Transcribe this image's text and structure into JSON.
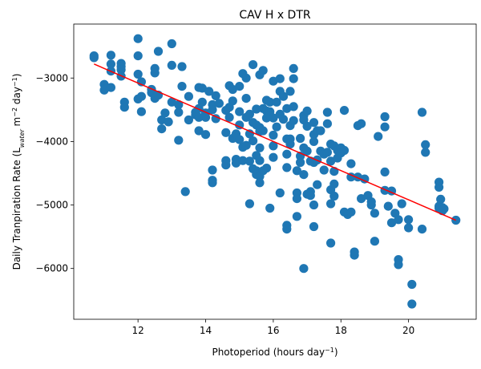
{
  "chart_data": {
    "type": "scatter",
    "title": "CAV H x DTR",
    "xlabel": {
      "main": "Photoperiod (hours day",
      "sup": "−1",
      "tail": ")"
    },
    "ylabel": {
      "main": "Daily Tranpiration Rate (L",
      "sub": "water",
      "mid": " m",
      "sup1": "−2",
      "mid2": " day",
      "sup2": "−1",
      "tail": ")"
    },
    "xlim": [
      10.1,
      22.0
    ],
    "ylim": [
      -6800,
      -2150
    ],
    "xticks": [
      12,
      14,
      16,
      18,
      20
    ],
    "xtick_labels": [
      "12",
      "14",
      "16",
      "18",
      "20"
    ],
    "yticks": [
      -6000,
      -5000,
      -4000,
      -3000
    ],
    "ytick_labels": [
      "−6000",
      "−5000",
      "−4000",
      "−3000"
    ],
    "grid": false,
    "point_color": "#1f77b4",
    "trend_color": "#ff0000",
    "trendline": {
      "x": [
        10.7,
        21.4
      ],
      "y": [
        -2780,
        -5240
      ]
    },
    "points": [
      [
        10.7,
        -2650
      ],
      [
        10.7,
        -2680
      ],
      [
        11.0,
        -3100
      ],
      [
        11.0,
        -3190
      ],
      [
        11.2,
        -2780
      ],
      [
        11.2,
        -2890
      ],
      [
        11.2,
        -3150
      ],
      [
        11.2,
        -2640
      ],
      [
        11.5,
        -2770
      ],
      [
        11.5,
        -2820
      ],
      [
        11.5,
        -2870
      ],
      [
        11.5,
        -2970
      ],
      [
        11.6,
        -3380
      ],
      [
        11.6,
        -3460
      ],
      [
        12.0,
        -2380
      ],
      [
        12.0,
        -2650
      ],
      [
        12.0,
        -2940
      ],
      [
        12.0,
        -3330
      ],
      [
        12.1,
        -3060
      ],
      [
        12.1,
        -3530
      ],
      [
        12.1,
        -3290
      ],
      [
        12.4,
        -3180
      ],
      [
        12.4,
        -3230
      ],
      [
        12.5,
        -2850
      ],
      [
        12.5,
        -2920
      ],
      [
        12.5,
        -3320
      ],
      [
        12.6,
        -2580
      ],
      [
        12.6,
        -3270
      ],
      [
        12.7,
        -3660
      ],
      [
        12.7,
        -3800
      ],
      [
        12.8,
        -3550
      ],
      [
        12.9,
        -3690
      ],
      [
        13.0,
        -2460
      ],
      [
        13.0,
        -2800
      ],
      [
        13.0,
        -3380
      ],
      [
        13.2,
        -3420
      ],
      [
        13.2,
        -3540
      ],
      [
        13.2,
        -3980
      ],
      [
        13.3,
        -2820
      ],
      [
        13.3,
        -3130
      ],
      [
        13.4,
        -4790
      ],
      [
        13.5,
        -3660
      ],
      [
        13.5,
        -3290
      ],
      [
        13.7,
        -3540
      ],
      [
        13.7,
        -3580
      ],
      [
        13.8,
        -3150
      ],
      [
        13.8,
        -3480
      ],
      [
        13.8,
        -3620
      ],
      [
        13.8,
        -3830
      ],
      [
        13.9,
        -3160
      ],
      [
        13.9,
        -3380
      ],
      [
        14.0,
        -3550
      ],
      [
        14.0,
        -3620
      ],
      [
        14.0,
        -3890
      ],
      [
        14.1,
        -3210
      ],
      [
        14.2,
        -3420
      ],
      [
        14.2,
        -3500
      ],
      [
        14.2,
        -4450
      ],
      [
        14.2,
        -4610
      ],
      [
        14.2,
        -4650
      ],
      [
        14.3,
        -3280
      ],
      [
        14.3,
        -3640
      ],
      [
        14.4,
        -3400
      ],
      [
        14.6,
        -3510
      ],
      [
        14.6,
        -3860
      ],
      [
        14.6,
        -4300
      ],
      [
        14.6,
        -4370
      ],
      [
        14.7,
        -3120
      ],
      [
        14.7,
        -3460
      ],
      [
        14.7,
        -3620
      ],
      [
        14.8,
        -3360
      ],
      [
        14.8,
        -3950
      ],
      [
        14.8,
        -3180
      ],
      [
        14.9,
        -3880
      ],
      [
        14.9,
        -4280
      ],
      [
        14.9,
        -4340
      ],
      [
        15.0,
        -3130
      ],
      [
        15.0,
        -3740
      ],
      [
        15.0,
        -3970
      ],
      [
        15.0,
        -3530
      ],
      [
        15.1,
        -2930
      ],
      [
        15.1,
        -4090
      ],
      [
        15.1,
        -4300
      ],
      [
        15.2,
        -3320
      ],
      [
        15.2,
        -3620
      ],
      [
        15.2,
        -4060
      ],
      [
        15.2,
        -3000
      ],
      [
        15.3,
        -3570
      ],
      [
        15.3,
        -3880
      ],
      [
        15.3,
        -4310
      ],
      [
        15.3,
        -4980
      ],
      [
        15.4,
        -2790
      ],
      [
        15.4,
        -3700
      ],
      [
        15.4,
        -3990
      ],
      [
        15.4,
        -4430
      ],
      [
        15.5,
        -3490
      ],
      [
        15.5,
        -3740
      ],
      [
        15.5,
        -4220
      ],
      [
        15.5,
        -4460
      ],
      [
        15.5,
        -4520
      ],
      [
        15.6,
        -2950
      ],
      [
        15.6,
        -3780
      ],
      [
        15.6,
        -3840
      ],
      [
        15.6,
        -4100
      ],
      [
        15.6,
        -4300
      ],
      [
        15.6,
        -4550
      ],
      [
        15.6,
        -4650
      ],
      [
        15.7,
        -2880
      ],
      [
        15.7,
        -3480
      ],
      [
        15.7,
        -3830
      ],
      [
        15.7,
        -4460
      ],
      [
        15.8,
        -3350
      ],
      [
        15.8,
        -3520
      ],
      [
        15.8,
        -3630
      ],
      [
        15.8,
        -4420
      ],
      [
        15.9,
        -3380
      ],
      [
        15.9,
        -3530
      ],
      [
        15.9,
        -3590
      ],
      [
        15.9,
        -5050
      ],
      [
        16.0,
        -3050
      ],
      [
        16.0,
        -3630
      ],
      [
        16.0,
        -3900
      ],
      [
        16.0,
        -4070
      ],
      [
        16.0,
        -4250
      ],
      [
        16.1,
        -3380
      ],
      [
        16.1,
        -3770
      ],
      [
        16.2,
        -3010
      ],
      [
        16.2,
        -3210
      ],
      [
        16.2,
        -3570
      ],
      [
        16.2,
        -4810
      ],
      [
        16.3,
        -3290
      ],
      [
        16.3,
        -3650
      ],
      [
        16.4,
        -3480
      ],
      [
        16.4,
        -3960
      ],
      [
        16.4,
        -4200
      ],
      [
        16.4,
        -4410
      ],
      [
        16.4,
        -5320
      ],
      [
        16.4,
        -5380
      ],
      [
        16.5,
        -3210
      ],
      [
        16.5,
        -3750
      ],
      [
        16.5,
        -3960
      ],
      [
        16.5,
        -4040
      ],
      [
        16.6,
        -2850
      ],
      [
        16.6,
        -3010
      ],
      [
        16.6,
        -3450
      ],
      [
        16.6,
        -3670
      ],
      [
        16.7,
        -4460
      ],
      [
        16.7,
        -4810
      ],
      [
        16.7,
        -4900
      ],
      [
        16.7,
        -5180
      ],
      [
        16.8,
        -3950
      ],
      [
        16.8,
        -4230
      ],
      [
        16.8,
        -4330
      ],
      [
        16.9,
        -3590
      ],
      [
        16.9,
        -3660
      ],
      [
        16.9,
        -4100
      ],
      [
        16.9,
        -4520
      ],
      [
        16.9,
        -6000
      ],
      [
        17.0,
        -3520
      ],
      [
        17.0,
        -3760
      ],
      [
        17.0,
        -4150
      ],
      [
        17.0,
        -4830
      ],
      [
        17.1,
        -4310
      ],
      [
        17.1,
        -4790
      ],
      [
        17.1,
        -4850
      ],
      [
        17.2,
        -3700
      ],
      [
        17.2,
        -3890
      ],
      [
        17.2,
        -4000
      ],
      [
        17.2,
        -4330
      ],
      [
        17.2,
        -5000
      ],
      [
        17.2,
        -5340
      ],
      [
        17.3,
        -3830
      ],
      [
        17.3,
        -4290
      ],
      [
        17.3,
        -4680
      ],
      [
        17.4,
        -3830
      ],
      [
        17.4,
        -4150
      ],
      [
        17.5,
        -4200
      ],
      [
        17.5,
        -4450
      ],
      [
        17.6,
        -3540
      ],
      [
        17.6,
        -3720
      ],
      [
        17.6,
        -4170
      ],
      [
        17.7,
        -4040
      ],
      [
        17.7,
        -4310
      ],
      [
        17.7,
        -4760
      ],
      [
        17.7,
        -4980
      ],
      [
        17.7,
        -5600
      ],
      [
        17.8,
        -4070
      ],
      [
        17.8,
        -4470
      ],
      [
        17.8,
        -4670
      ],
      [
        17.8,
        -4860
      ],
      [
        17.9,
        -4140
      ],
      [
        17.9,
        -4260
      ],
      [
        18.0,
        -4100
      ],
      [
        18.0,
        -4180
      ],
      [
        18.1,
        -3510
      ],
      [
        18.1,
        -4140
      ],
      [
        18.1,
        -5110
      ],
      [
        18.2,
        -5150
      ],
      [
        18.3,
        -5110
      ],
      [
        18.3,
        -4350
      ],
      [
        18.3,
        -4560
      ],
      [
        18.4,
        -5790
      ],
      [
        18.4,
        -5740
      ],
      [
        18.5,
        -3750
      ],
      [
        18.5,
        -4560
      ],
      [
        18.6,
        -3720
      ],
      [
        18.6,
        -4900
      ],
      [
        18.7,
        -4590
      ],
      [
        18.8,
        -4850
      ],
      [
        18.9,
        -4950
      ],
      [
        18.9,
        -5000
      ],
      [
        19.0,
        -5130
      ],
      [
        19.0,
        -5570
      ],
      [
        19.1,
        -3920
      ],
      [
        19.3,
        -3610
      ],
      [
        19.3,
        -3770
      ],
      [
        19.3,
        -4480
      ],
      [
        19.3,
        -4770
      ],
      [
        19.4,
        -5020
      ],
      [
        19.5,
        -4780
      ],
      [
        19.5,
        -5280
      ],
      [
        19.6,
        -5130
      ],
      [
        19.7,
        -5230
      ],
      [
        19.7,
        -5860
      ],
      [
        19.7,
        -5940
      ],
      [
        19.8,
        -4980
      ],
      [
        20.0,
        -5360
      ],
      [
        20.0,
        -5230
      ],
      [
        20.1,
        -6250
      ],
      [
        20.1,
        -6560
      ],
      [
        20.4,
        -3540
      ],
      [
        20.4,
        -5380
      ],
      [
        20.5,
        -4050
      ],
      [
        20.5,
        -4170
      ],
      [
        20.9,
        -4640
      ],
      [
        20.9,
        -4720
      ],
      [
        20.9,
        -5020
      ],
      [
        20.9,
        -5050
      ],
      [
        20.95,
        -4910
      ],
      [
        21.0,
        -5040
      ],
      [
        21.0,
        -5090
      ],
      [
        21.05,
        -5060
      ],
      [
        21.4,
        -5240
      ]
    ]
  }
}
